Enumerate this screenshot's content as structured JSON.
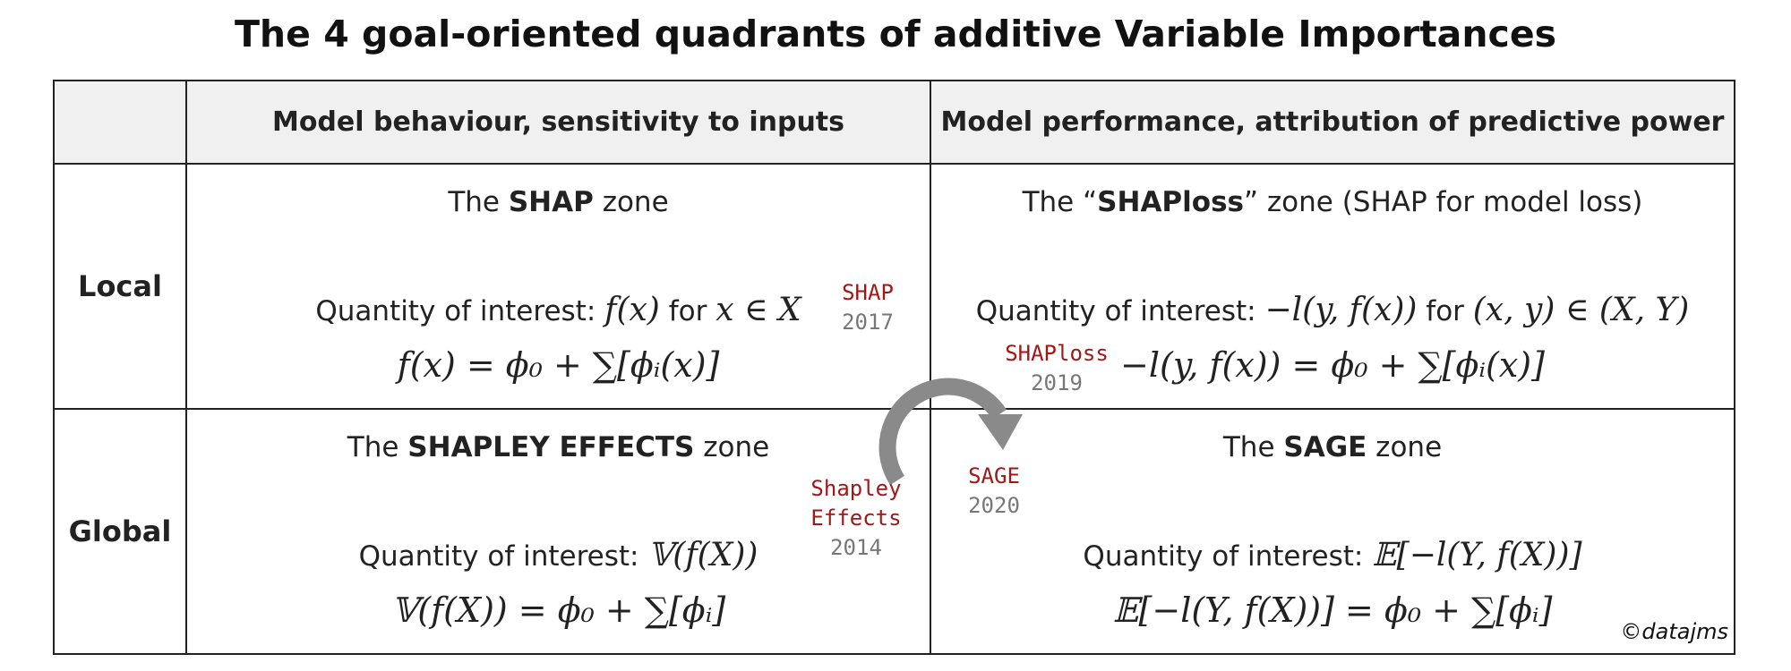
{
  "title": "The 4 goal-oriented quadrants of additive Variable Importances",
  "columns": {
    "behaviour": "Model behaviour, sensitivity to inputs",
    "performance": "Model performance, attribution of predictive power"
  },
  "rows": {
    "local": "Local",
    "global": "Global"
  },
  "cells": {
    "shap": {
      "zone_prefix": "The ",
      "zone_bold": "SHAP",
      "zone_suffix": " zone",
      "q_label": "Quantity of interest: ",
      "q_math": "f(x)",
      "q_mid": " for ",
      "q_math2": "x ∈ X",
      "equation": "f(x) = ϕ₀ + ∑[ϕᵢ(x)]"
    },
    "shaploss": {
      "zone_prefix": "The “",
      "zone_bold": "SHAPloss",
      "zone_suffix": "” zone (SHAP for model loss)",
      "q_label": "Quantity of interest: ",
      "q_math": "−l(y, f(x))",
      "q_mid": " for ",
      "q_math2": "(x, y) ∈ (X, Y)",
      "equation": "−l(y, f(x)) = ϕ₀ + ∑[ϕᵢ(x)]"
    },
    "shapley": {
      "zone_prefix": "The ",
      "zone_bold": "SHAPLEY EFFECTS",
      "zone_suffix": " zone",
      "q_label": "Quantity of interest: ",
      "q_math": "𝕍(f(X))",
      "equation": "𝕍(f(X)) = ϕ₀ + ∑[ϕᵢ]"
    },
    "sage": {
      "zone_prefix": "The ",
      "zone_bold": "SAGE",
      "zone_suffix": " zone",
      "q_label": "Quantity of interest: ",
      "q_math": "𝔼[−l(Y, f(X))]",
      "equation": "𝔼[−l(Y, f(X))] = ϕ₀ + ∑[ϕᵢ]"
    }
  },
  "methods": {
    "shap": {
      "name": "SHAP",
      "year": "2017"
    },
    "shaploss": {
      "name": "SHAPloss",
      "year": "2019"
    },
    "shapley": {
      "name_line1": "Shapley",
      "name_line2": "Effects",
      "year": "2014"
    },
    "sage": {
      "name": "SAGE",
      "year": "2020"
    }
  },
  "watermark": "©datajms",
  "colors": {
    "method_name": "#a01818",
    "method_year": "#777777",
    "arrow": "#8a8a8a",
    "header_bg": "#f0f0f0"
  }
}
